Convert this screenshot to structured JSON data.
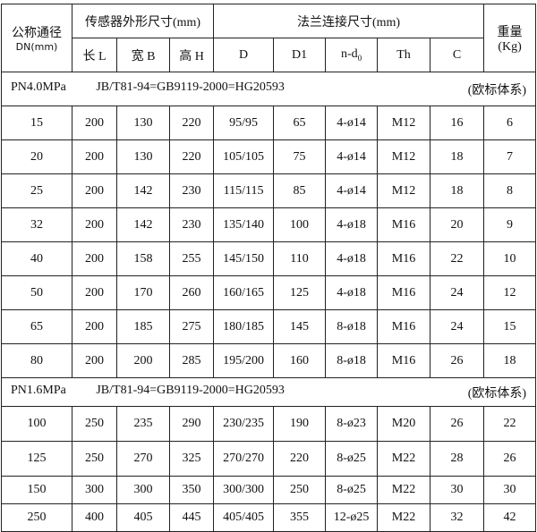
{
  "header": {
    "dn_label": "公称通径",
    "dn_unit": "DN(mm)",
    "sensor_group": "传感器外形尺寸(mm)",
    "flange_group": "法兰连接尺寸(mm)",
    "weight_label": "重量",
    "weight_unit": "(Kg)",
    "columns": [
      "长 L",
      "宽 B",
      "高 H",
      "D",
      "D1",
      "n-d",
      "Th",
      "C"
    ],
    "nd_sub": "0"
  },
  "sections": [
    {
      "pressure": "PN4.0MPa",
      "standard": "JB/T81-94=GB9119-2000=HG20593",
      "system": "(欧标体系)",
      "rows": [
        [
          "15",
          "200",
          "130",
          "220",
          "95/95",
          "65",
          "4-ø14",
          "M12",
          "16",
          "6"
        ],
        [
          "20",
          "200",
          "130",
          "220",
          "105/105",
          "75",
          "4-ø14",
          "M12",
          "18",
          "7"
        ],
        [
          "25",
          "200",
          "142",
          "230",
          "115/115",
          "85",
          "4-ø14",
          "M12",
          "18",
          "8"
        ],
        [
          "32",
          "200",
          "142",
          "230",
          "135/140",
          "100",
          "4-ø18",
          "M16",
          "20",
          "9"
        ],
        [
          "40",
          "200",
          "158",
          "255",
          "145/150",
          "110",
          "4-ø18",
          "M16",
          "22",
          "10"
        ],
        [
          "50",
          "200",
          "170",
          "260",
          "160/165",
          "125",
          "4-ø18",
          "M16",
          "24",
          "12"
        ],
        [
          "65",
          "200",
          "185",
          "275",
          "180/185",
          "145",
          "8-ø18",
          "M16",
          "24",
          "15"
        ],
        [
          "80",
          "200",
          "200",
          "285",
          "195/200",
          "160",
          "8-ø18",
          "M16",
          "26",
          "18"
        ]
      ]
    },
    {
      "pressure": "PN1.6MPa",
      "standard": "JB/T81-94=GB9119-2000=HG20593",
      "system": "(欧标体系)",
      "rows": [
        [
          "100",
          "250",
          "235",
          "290",
          "230/235",
          "190",
          "8-ø23",
          "M20",
          "26",
          "22"
        ],
        [
          "125",
          "250",
          "270",
          "325",
          "270/270",
          "220",
          "8-ø25",
          "M22",
          "28",
          "26"
        ],
        [
          "150",
          "300",
          "300",
          "350",
          "300/300",
          "250",
          "8-ø25",
          "M22",
          "30",
          "30"
        ],
        [
          "250",
          "400",
          "405",
          "445",
          "405/405",
          "355",
          "12-ø25",
          "M22",
          "32",
          "42"
        ]
      ]
    }
  ]
}
